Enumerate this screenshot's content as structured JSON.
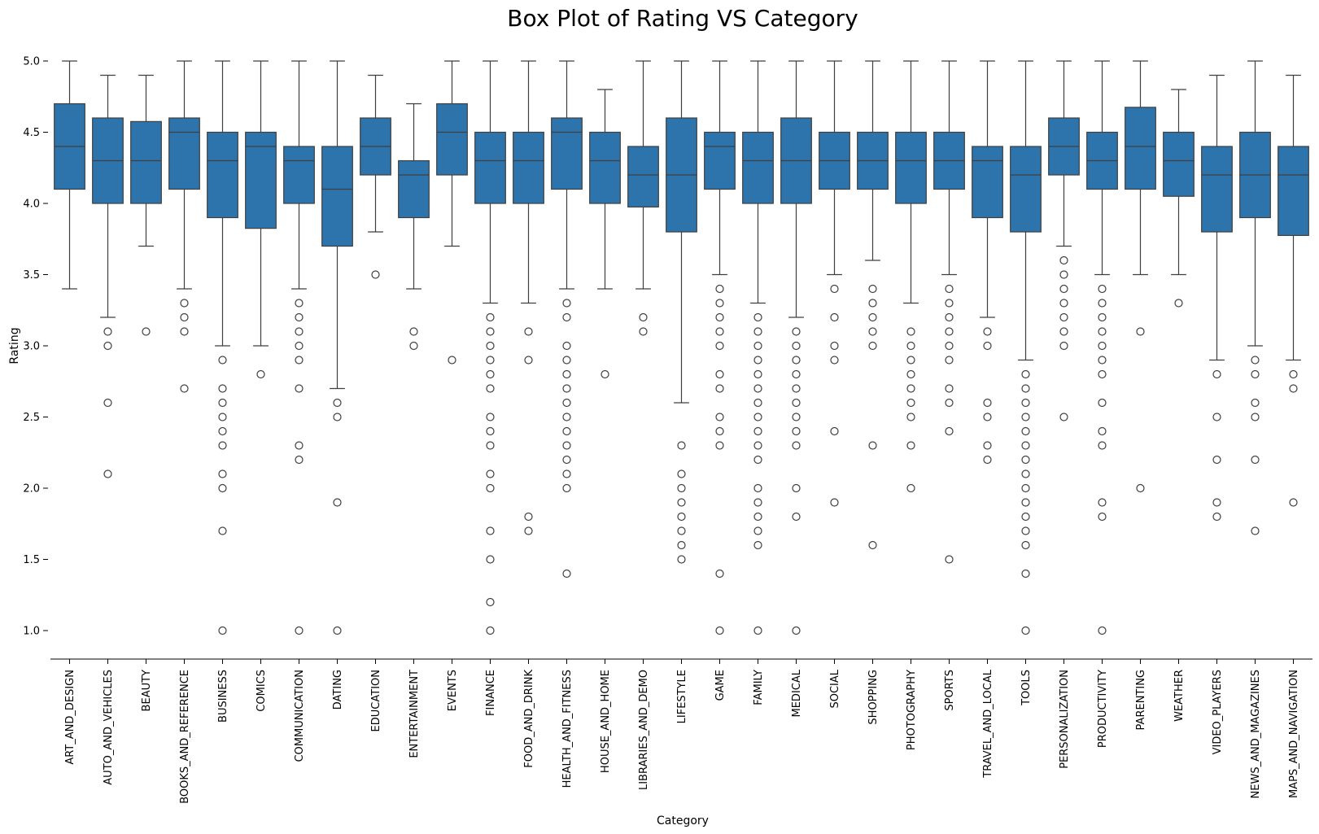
{
  "chart_data": {
    "type": "box",
    "title": "Box Plot of Rating VS Category",
    "xlabel": "Category",
    "ylabel": "Rating",
    "ylim": [
      0.8,
      5.2
    ],
    "yticks": [
      "1.0",
      "1.5",
      "2.0",
      "2.5",
      "3.0",
      "3.5",
      "4.0",
      "4.5",
      "5.0"
    ],
    "color": "#2e74ac",
    "grid": false,
    "categories": [
      {
        "name": "ART_AND_DESIGN",
        "min": 3.4,
        "q1": 4.1,
        "median": 4.4,
        "q3": 4.7,
        "max": 5.0,
        "outliers": []
      },
      {
        "name": "AUTO_AND_VEHICLES",
        "min": 3.2,
        "q1": 4.0,
        "median": 4.3,
        "q3": 4.6,
        "max": 4.9,
        "outliers": [
          3.1,
          3.0,
          2.6,
          2.1
        ]
      },
      {
        "name": "BEAUTY",
        "min": 3.7,
        "q1": 4.0,
        "median": 4.3,
        "q3": 4.575,
        "max": 4.9,
        "outliers": [
          3.1
        ]
      },
      {
        "name": "BOOKS_AND_REFERENCE",
        "min": 3.4,
        "q1": 4.1,
        "median": 4.5,
        "q3": 4.6,
        "max": 5.0,
        "outliers": [
          3.3,
          3.2,
          3.1,
          2.7
        ]
      },
      {
        "name": "BUSINESS",
        "min": 3.0,
        "q1": 3.9,
        "median": 4.3,
        "q3": 4.5,
        "max": 5.0,
        "outliers": [
          2.9,
          2.7,
          2.6,
          2.5,
          2.4,
          2.3,
          2.1,
          2.0,
          1.7,
          1.0
        ]
      },
      {
        "name": "COMICS",
        "min": 3.0,
        "q1": 3.825,
        "median": 4.4,
        "q3": 4.5,
        "max": 5.0,
        "outliers": [
          2.8
        ]
      },
      {
        "name": "COMMUNICATION",
        "min": 3.4,
        "q1": 4.0,
        "median": 4.3,
        "q3": 4.4,
        "max": 5.0,
        "outliers": [
          3.3,
          3.2,
          3.1,
          3.0,
          2.9,
          2.7,
          2.3,
          2.2,
          1.0
        ]
      },
      {
        "name": "DATING",
        "min": 2.7,
        "q1": 3.7,
        "median": 4.1,
        "q3": 4.4,
        "max": 5.0,
        "outliers": [
          2.6,
          2.5,
          1.9,
          1.0
        ]
      },
      {
        "name": "EDUCATION",
        "min": 3.8,
        "q1": 4.2,
        "median": 4.4,
        "q3": 4.6,
        "max": 4.9,
        "outliers": [
          3.5
        ]
      },
      {
        "name": "ENTERTAINMENT",
        "min": 3.4,
        "q1": 3.9,
        "median": 4.2,
        "q3": 4.3,
        "max": 4.7,
        "outliers": [
          3.1,
          3.0
        ]
      },
      {
        "name": "EVENTS",
        "min": 3.7,
        "q1": 4.2,
        "median": 4.5,
        "q3": 4.7,
        "max": 5.0,
        "outliers": [
          2.9
        ]
      },
      {
        "name": "FINANCE",
        "min": 3.3,
        "q1": 4.0,
        "median": 4.3,
        "q3": 4.5,
        "max": 5.0,
        "outliers": [
          3.2,
          3.1,
          3.0,
          2.9,
          2.8,
          2.7,
          2.5,
          2.4,
          2.3,
          2.1,
          2.0,
          1.7,
          1.5,
          1.2,
          1.0
        ]
      },
      {
        "name": "FOOD_AND_DRINK",
        "min": 3.3,
        "q1": 4.0,
        "median": 4.3,
        "q3": 4.5,
        "max": 5.0,
        "outliers": [
          3.1,
          2.9,
          1.8,
          1.7
        ]
      },
      {
        "name": "HEALTH_AND_FITNESS",
        "min": 3.4,
        "q1": 4.1,
        "median": 4.5,
        "q3": 4.6,
        "max": 5.0,
        "outliers": [
          3.3,
          3.2,
          3.0,
          2.9,
          2.8,
          2.7,
          2.6,
          2.5,
          2.4,
          2.3,
          2.2,
          2.1,
          2.0,
          1.4
        ]
      },
      {
        "name": "HOUSE_AND_HOME",
        "min": 3.4,
        "q1": 4.0,
        "median": 4.3,
        "q3": 4.5,
        "max": 4.8,
        "outliers": [
          2.8
        ]
      },
      {
        "name": "LIBRARIES_AND_DEMO",
        "min": 3.4,
        "q1": 3.975,
        "median": 4.2,
        "q3": 4.4,
        "max": 5.0,
        "outliers": [
          3.2,
          3.1
        ]
      },
      {
        "name": "LIFESTYLE",
        "min": 2.6,
        "q1": 3.8,
        "median": 4.2,
        "q3": 4.6,
        "max": 5.0,
        "outliers": [
          2.3,
          2.1,
          2.0,
          1.9,
          1.8,
          1.7,
          1.6,
          1.5
        ]
      },
      {
        "name": "GAME",
        "min": 3.5,
        "q1": 4.1,
        "median": 4.4,
        "q3": 4.5,
        "max": 5.0,
        "outliers": [
          3.4,
          3.3,
          3.2,
          3.1,
          3.0,
          2.8,
          2.7,
          2.5,
          2.4,
          2.3,
          1.4,
          1.0
        ]
      },
      {
        "name": "FAMILY",
        "min": 3.3,
        "q1": 4.0,
        "median": 4.3,
        "q3": 4.5,
        "max": 5.0,
        "outliers": [
          3.2,
          3.1,
          3.0,
          2.9,
          2.8,
          2.7,
          2.6,
          2.5,
          2.4,
          2.3,
          2.2,
          2.0,
          1.9,
          1.8,
          1.7,
          1.6,
          1.0
        ]
      },
      {
        "name": "MEDICAL",
        "min": 3.2,
        "q1": 4.0,
        "median": 4.3,
        "q3": 4.6,
        "max": 5.0,
        "outliers": [
          3.1,
          3.0,
          2.9,
          2.8,
          2.7,
          2.6,
          2.5,
          2.4,
          2.3,
          2.0,
          1.8,
          1.0
        ]
      },
      {
        "name": "SOCIAL",
        "min": 3.5,
        "q1": 4.1,
        "median": 4.3,
        "q3": 4.5,
        "max": 5.0,
        "outliers": [
          3.4,
          3.2,
          3.0,
          2.9,
          2.4,
          1.9
        ]
      },
      {
        "name": "SHOPPING",
        "min": 3.6,
        "q1": 4.1,
        "median": 4.3,
        "q3": 4.5,
        "max": 5.0,
        "outliers": [
          3.4,
          3.3,
          3.2,
          3.1,
          3.0,
          2.3,
          1.6
        ]
      },
      {
        "name": "PHOTOGRAPHY",
        "min": 3.3,
        "q1": 4.0,
        "median": 4.3,
        "q3": 4.5,
        "max": 5.0,
        "outliers": [
          3.1,
          3.0,
          2.9,
          2.8,
          2.7,
          2.6,
          2.5,
          2.3,
          2.0
        ]
      },
      {
        "name": "SPORTS",
        "min": 3.5,
        "q1": 4.1,
        "median": 4.3,
        "q3": 4.5,
        "max": 5.0,
        "outliers": [
          3.4,
          3.3,
          3.2,
          3.1,
          3.0,
          2.9,
          2.7,
          2.6,
          2.4,
          1.5
        ]
      },
      {
        "name": "TRAVEL_AND_LOCAL",
        "min": 3.2,
        "q1": 3.9,
        "median": 4.3,
        "q3": 4.4,
        "max": 5.0,
        "outliers": [
          3.1,
          3.0,
          2.6,
          2.5,
          2.3,
          2.2
        ]
      },
      {
        "name": "TOOLS",
        "min": 2.9,
        "q1": 3.8,
        "median": 4.2,
        "q3": 4.4,
        "max": 5.0,
        "outliers": [
          2.8,
          2.7,
          2.6,
          2.5,
          2.4,
          2.3,
          2.2,
          2.1,
          2.0,
          1.9,
          1.8,
          1.7,
          1.6,
          1.4,
          1.0
        ]
      },
      {
        "name": "PERSONALIZATION",
        "min": 3.7,
        "q1": 4.2,
        "median": 4.4,
        "q3": 4.6,
        "max": 5.0,
        "outliers": [
          3.6,
          3.5,
          3.4,
          3.3,
          3.2,
          3.1,
          3.0,
          2.5
        ]
      },
      {
        "name": "PRODUCTIVITY",
        "min": 3.5,
        "q1": 4.1,
        "median": 4.3,
        "q3": 4.5,
        "max": 5.0,
        "outliers": [
          3.4,
          3.3,
          3.2,
          3.1,
          3.0,
          2.9,
          2.8,
          2.6,
          2.4,
          2.3,
          1.9,
          1.8,
          1.0
        ]
      },
      {
        "name": "PARENTING",
        "min": 3.5,
        "q1": 4.1,
        "median": 4.4,
        "q3": 4.675,
        "max": 5.0,
        "outliers": [
          3.1,
          2.0
        ]
      },
      {
        "name": "WEATHER",
        "min": 3.5,
        "q1": 4.05,
        "median": 4.3,
        "q3": 4.5,
        "max": 4.8,
        "outliers": [
          3.3
        ]
      },
      {
        "name": "VIDEO_PLAYERS",
        "min": 2.9,
        "q1": 3.8,
        "median": 4.2,
        "q3": 4.4,
        "max": 4.9,
        "outliers": [
          2.8,
          2.5,
          2.2,
          1.9,
          1.8
        ]
      },
      {
        "name": "NEWS_AND_MAGAZINES",
        "min": 3.0,
        "q1": 3.9,
        "median": 4.2,
        "q3": 4.5,
        "max": 5.0,
        "outliers": [
          2.9,
          2.8,
          2.6,
          2.5,
          2.2,
          1.7
        ]
      },
      {
        "name": "MAPS_AND_NAVIGATION",
        "min": 2.9,
        "q1": 3.775,
        "median": 4.2,
        "q3": 4.4,
        "max": 4.9,
        "outliers": [
          2.8,
          2.7,
          1.9
        ]
      }
    ]
  }
}
